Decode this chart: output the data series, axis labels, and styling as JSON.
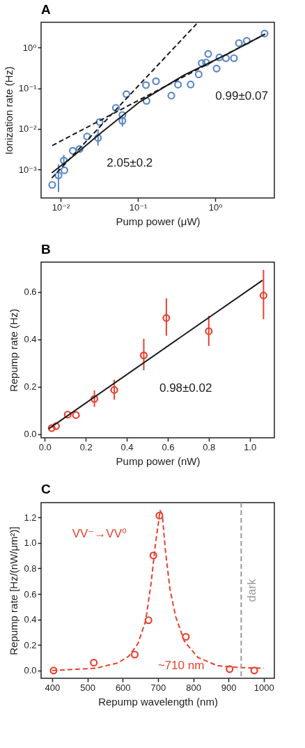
{
  "chart_data": [
    {
      "type": "scatter",
      "title": "A",
      "xlabel": "Pump power (μW)",
      "ylabel": "Ionization rate (Hz)",
      "log": "xy",
      "xlim": [
        0.0056,
        5.8
      ],
      "ylim": [
        0.0002,
        4.2
      ],
      "xticks": [
        {
          "value": 0.01,
          "label": "10⁻²"
        },
        {
          "value": 0.1,
          "label": "10⁻¹"
        },
        {
          "value": 1,
          "label": "10⁰"
        }
      ],
      "yticks": [
        {
          "value": 0.001,
          "label": "10⁻³"
        },
        {
          "value": 0.01,
          "label": "10⁻²"
        },
        {
          "value": 0.1,
          "label": "10⁻¹"
        },
        {
          "value": 1,
          "label": "10⁰"
        }
      ],
      "series": [
        {
          "marker": "circle",
          "color": "#5b87c8",
          "x": [
            0.0078,
            0.0094,
            0.011,
            0.0112,
            0.0144,
            0.0176,
            0.022,
            0.0305,
            0.032,
            0.052,
            0.063,
            0.063,
            0.071,
            0.127,
            0.129,
            0.171,
            0.27,
            0.33,
            0.48,
            0.61,
            0.667,
            0.76,
            0.81,
            1.04,
            1.13,
            1.37,
            1.74,
            2.02,
            2.55,
            4.33
          ],
          "values": [
            0.00042,
            0.00072,
            0.00167,
            0.00096,
            0.0029,
            0.0032,
            0.0065,
            0.006,
            0.0148,
            0.033,
            0.022,
            0.0158,
            0.0716,
            0.12,
            0.049,
            0.149,
            0.066,
            0.123,
            0.124,
            0.22,
            0.417,
            0.43,
            0.7,
            0.306,
            0.575,
            0.55,
            0.55,
            1.29,
            1.47,
            2.22
          ],
          "errors": [
            null,
            [
              0.00028,
              0.00135
            ],
            [
              0.00125,
              0.0023
            ],
            null,
            null,
            null,
            null,
            [
              0.0039,
              0.0098
            ],
            null,
            null,
            null,
            [
              0.0114,
              0.02
            ],
            null,
            null,
            null,
            null,
            null,
            null,
            null,
            null,
            null,
            null,
            null,
            null,
            null,
            null,
            null,
            null,
            null,
            null
          ]
        },
        {
          "type": "line",
          "color": "#1a1a1a",
          "line_style": "solid",
          "x": [
            0.0077,
            0.0144,
            0.0319,
            0.105,
            0.4,
            1.5,
            4.4
          ],
          "values": [
            0.00083,
            0.0021,
            0.0075,
            0.046,
            0.214,
            0.725,
            2.16
          ]
        },
        {
          "type": "line",
          "color": "#1a1a1a",
          "line_style": "dashed",
          "x": [
            0.0077,
            0.573
          ],
          "values": [
            0.00062,
            3.86
          ]
        },
        {
          "type": "line",
          "color": "#1a1a1a",
          "line_style": "dashed",
          "x": [
            0.0078,
            4.4
          ],
          "values": [
            0.0039,
            2.16
          ]
        }
      ],
      "annotations": [
        "2.05±0.2",
        "0.99±0.07"
      ]
    },
    {
      "type": "scatter",
      "title": "B",
      "xlabel": "Pump power (nW)",
      "ylabel": "Repump rate (Hz)",
      "xlim": [
        -0.018,
        1.12
      ],
      "ylim": [
        -0.016,
        0.726
      ],
      "xticks": [
        {
          "value": 0,
          "label": "0.0"
        },
        {
          "value": 0.2,
          "label": "0.2"
        },
        {
          "value": 0.4,
          "label": "0.4"
        },
        {
          "value": 0.6,
          "label": "0.6"
        },
        {
          "value": 0.8,
          "label": "0.8"
        },
        {
          "value": 1,
          "label": "1.0"
        }
      ],
      "yticks": [
        {
          "value": 0,
          "label": "0.0"
        },
        {
          "value": 0.2,
          "label": "0.2"
        },
        {
          "value": 0.4,
          "label": "0.4"
        },
        {
          "value": 0.6,
          "label": "0.6"
        }
      ],
      "series": [
        {
          "marker": "circle",
          "color": "#e8412f",
          "x": [
            0.034,
            0.055,
            0.112,
            0.152,
            0.242,
            0.339,
            0.483,
            0.593,
            0.8,
            1.067
          ],
          "values": [
            0.025,
            0.033,
            0.082,
            0.08,
            0.148,
            0.186,
            0.332,
            0.49,
            0.434,
            0.585
          ],
          "errors": [
            null,
            null,
            null,
            null,
            [
              0.115,
              0.184
            ],
            [
              0.145,
              0.229
            ],
            [
              0.269,
              0.402
            ],
            [
              0.415,
              0.573
            ],
            [
              0.372,
              0.499
            ],
            [
              0.485,
              0.693
            ]
          ]
        },
        {
          "type": "line",
          "color": "#1a1a1a",
          "line_style": "solid",
          "x": [
            0.019,
            1.062
          ],
          "values": [
            0.022,
            0.649
          ]
        }
      ],
      "annotations": [
        "0.98±0.02"
      ]
    },
    {
      "type": "scatter",
      "title": "C",
      "xlabel": "Repump wavelength (nm)",
      "ylabel": "Repump rate [Hz/(nW/μm²)]",
      "xlim": [
        368.5,
        1030
      ],
      "ylim": [
        -0.061,
        1.316
      ],
      "xticks": [
        400,
        500,
        600,
        700,
        800,
        900,
        1000
      ],
      "yticks": [
        {
          "value": 0,
          "label": "0.0"
        },
        {
          "value": 0.2,
          "label": "0.2"
        },
        {
          "value": 0.4,
          "label": "0.4"
        },
        {
          "value": 0.6,
          "label": "0.6"
        },
        {
          "value": 0.8,
          "label": "0.8"
        },
        {
          "value": 1,
          "label": "1.0"
        },
        {
          "value": 1.2,
          "label": "1.2"
        }
      ],
      "series": [
        {
          "marker": "circle",
          "color": "#e8412f",
          "x": [
            404,
            518,
            634,
            673,
            687,
            704,
            779,
            903,
            973
          ],
          "values": [
            0.0,
            0.061,
            0.125,
            0.394,
            0.902,
            1.214,
            0.264,
            0.011,
            0.0
          ]
        },
        {
          "type": "line",
          "color": "#e8412f",
          "line_style": "dashed",
          "x": [
            400,
            523,
            586,
            617,
            643,
            665,
            680,
            693,
            706,
            712,
            721,
            734,
            750,
            775,
            813,
            869,
            932,
            1000
          ],
          "values": [
            0.0,
            0.018,
            0.059,
            0.112,
            0.21,
            0.389,
            0.674,
            0.995,
            1.254,
            1.227,
            0.942,
            0.638,
            0.424,
            0.228,
            0.103,
            0.037,
            0.023,
            0.018
          ]
        }
      ],
      "ref_lines": [
        {
          "axis": "x",
          "value": 936,
          "label": "dark",
          "color": "#999999",
          "line_style": "dashed"
        }
      ],
      "annotations": [
        "VV⁻→VV⁰",
        "~710 nm"
      ]
    }
  ]
}
